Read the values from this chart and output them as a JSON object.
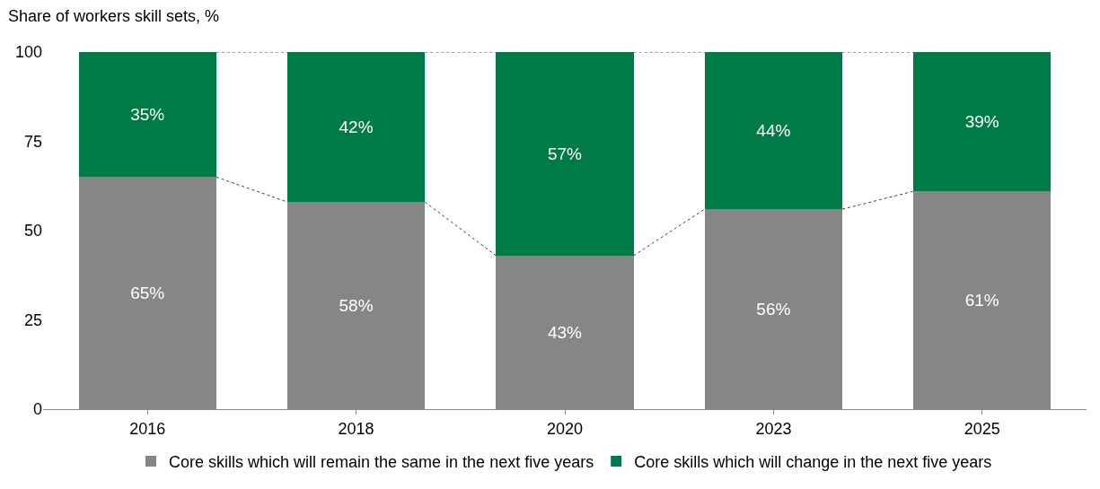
{
  "chart_data": {
    "type": "bar",
    "stacked": true,
    "ylabel": "Share of workers skill sets, %",
    "categories": [
      "2016",
      "2018",
      "2020",
      "2023",
      "2025"
    ],
    "series": [
      {
        "name": "Core skills which will remain the same in the next five years",
        "color": "#868686",
        "values": [
          65,
          58,
          43,
          56,
          61
        ],
        "value_labels": [
          "65%",
          "58%",
          "43%",
          "56%",
          "61%"
        ]
      },
      {
        "name": "Core skills which will change in the next five years",
        "color": "#007a47",
        "values": [
          35,
          42,
          57,
          44,
          39
        ],
        "value_labels": [
          "35%",
          "42%",
          "57%",
          "44%",
          "39%"
        ]
      }
    ],
    "ylim": [
      0,
      100
    ],
    "yticks": [
      0,
      25,
      50,
      75,
      100
    ],
    "grid": false,
    "legend": "bottom"
  }
}
